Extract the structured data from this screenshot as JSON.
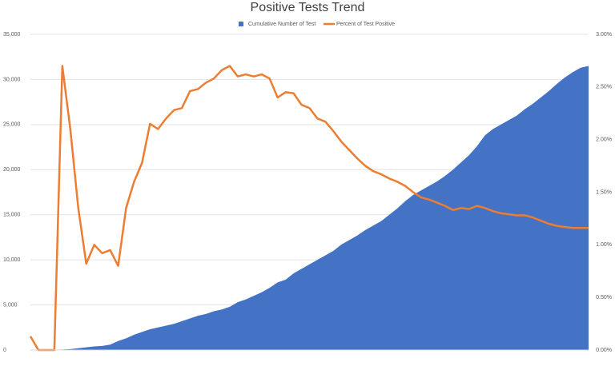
{
  "chart_data": {
    "type": "area-line",
    "title": "Positive Tests Trend",
    "categories": [
      null,
      null,
      null,
      null,
      null,
      null,
      null,
      null,
      null,
      null,
      null,
      null,
      null,
      null,
      null,
      null,
      null,
      null,
      null,
      null,
      null,
      null,
      null,
      null,
      null,
      null,
      null,
      null,
      null,
      null,
      null,
      null,
      null,
      null,
      null,
      null,
      null,
      null,
      null,
      null,
      null,
      null,
      null,
      null,
      null,
      null,
      null,
      null,
      null,
      null,
      null,
      null,
      null,
      null,
      null,
      null,
      null,
      null,
      null,
      null,
      null,
      null,
      null,
      null,
      null,
      null,
      null,
      null,
      null,
      null,
      null
    ],
    "series": [
      {
        "name": "Cumulative Number of Test",
        "color": "#4472c4",
        "kind": "area",
        "values": [
          0,
          0,
          0,
          0,
          50,
          100,
          200,
          300,
          400,
          450,
          600,
          1000,
          1300,
          1700,
          2000,
          2300,
          2500,
          2700,
          2900,
          3200,
          3500,
          3800,
          4000,
          4300,
          4500,
          4800,
          5300,
          5600,
          6000,
          6400,
          6900,
          7500,
          7800,
          8500,
          9000,
          9500,
          10000,
          10500,
          11000,
          11700,
          12200,
          12700,
          13300,
          13800,
          14300,
          15000,
          15700,
          16500,
          17200,
          17700,
          18200,
          18700,
          19300,
          20000,
          20800,
          21600,
          22600,
          23800,
          24500,
          25000,
          25500,
          26000,
          26700,
          27300,
          28000,
          28700,
          29500,
          30200,
          30800,
          31300,
          31500
        ]
      },
      {
        "name": "Percent of Test Positive",
        "color": "#ed7d31",
        "kind": "line",
        "axis": "y2",
        "values": [
          0.13,
          0,
          0,
          0,
          2.7,
          2.1,
          1.35,
          0.82,
          1.0,
          0.92,
          0.95,
          0.8,
          1.35,
          1.6,
          1.78,
          2.15,
          2.1,
          2.2,
          2.28,
          2.3,
          2.46,
          2.48,
          2.54,
          2.58,
          2.66,
          2.7,
          2.6,
          2.62,
          2.6,
          2.62,
          2.58,
          2.4,
          2.45,
          2.44,
          2.33,
          2.3,
          2.2,
          2.17,
          2.08,
          1.98,
          1.9,
          1.82,
          1.75,
          1.7,
          1.67,
          1.63,
          1.6,
          1.56,
          1.5,
          1.45,
          1.43,
          1.4,
          1.37,
          1.33,
          1.35,
          1.34,
          1.37,
          1.35,
          1.32,
          1.3,
          1.29,
          1.28,
          1.28,
          1.26,
          1.23,
          1.2,
          1.18,
          1.17,
          1.16,
          1.16,
          1.16
        ]
      }
    ],
    "ylim": [
      0,
      35000
    ],
    "yticks": [
      0,
      {
        "value": 5000,
        "label": "5,000"
      },
      {
        "value": 10000,
        "label": "10,000"
      },
      {
        "value": 15000,
        "label": "15,000"
      },
      {
        "value": 20000,
        "label": "20,000"
      },
      {
        "value": 25000,
        "label": "25,000"
      },
      {
        "value": 30000,
        "label": "30,000"
      },
      {
        "value": 35000,
        "label": "35,000"
      }
    ],
    "y2lim": [
      0,
      3
    ],
    "y2ticks": [
      {
        "value": 0,
        "label": "0.00%"
      },
      {
        "value": 0.5,
        "label": "0.50%"
      },
      {
        "value": 1,
        "label": "1.00%"
      },
      {
        "value": 1.5,
        "label": "1.50%"
      },
      {
        "value": 2,
        "label": "2.00%"
      },
      {
        "value": 2.5,
        "label": "2.50%"
      },
      {
        "value": 3,
        "label": "3.00%"
      }
    ],
    "grid": true,
    "legend": "top"
  }
}
